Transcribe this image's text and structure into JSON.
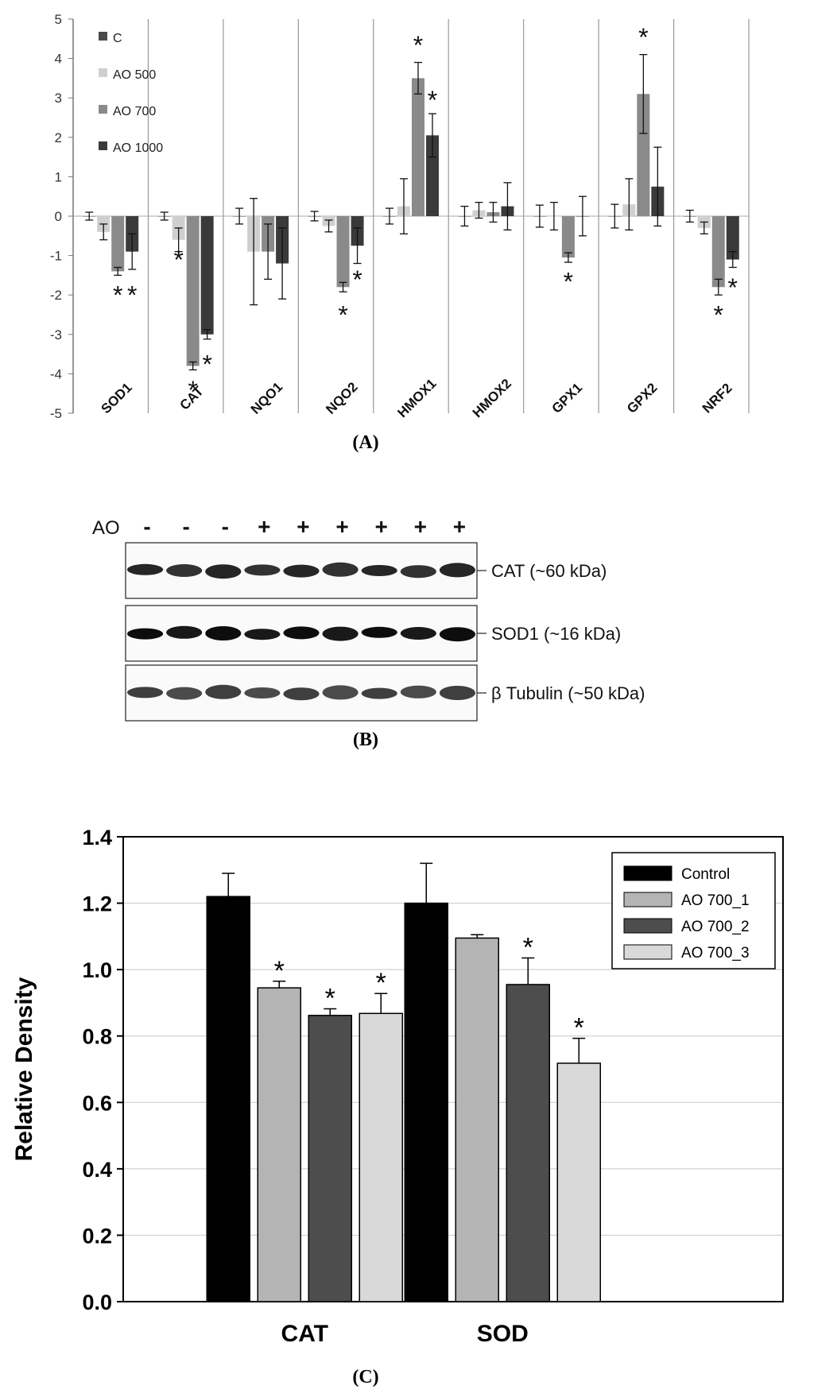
{
  "panels": {
    "a_label": "(A)",
    "b_label": "(B)",
    "c_label": "(C)"
  },
  "chart_data": [
    {
      "type": "bar",
      "panel": "A",
      "title": "",
      "xlabel": "",
      "ylabel": "",
      "ylim": [
        -5,
        5
      ],
      "yticks": [
        "5",
        "4",
        "3",
        "2",
        "1",
        "0",
        "-1",
        "-2",
        "-3",
        "-4",
        "-5"
      ],
      "categories": [
        "SOD1",
        "CAT",
        "NQO1",
        "NQO2",
        "HMOX1",
        "HMOX2",
        "GPX1",
        "GPX2",
        "NRF2"
      ],
      "series": [
        {
          "name": "C",
          "color": "#4a4a4a",
          "values": [
            0,
            0,
            0,
            0,
            0,
            0,
            0,
            0,
            0
          ],
          "errors": [
            0.1,
            0.1,
            0.2,
            0.12,
            0.2,
            0.25,
            0.28,
            0.3,
            0.15
          ]
        },
        {
          "name": "AO 500",
          "color": "#cfcfcf",
          "values": [
            -0.4,
            -0.6,
            -0.9,
            -0.25,
            0.25,
            0.15,
            0,
            0.3,
            -0.3
          ],
          "errors": [
            0.2,
            0.3,
            1.35,
            0.15,
            0.7,
            0.2,
            0.35,
            0.65,
            0.15
          ]
        },
        {
          "name": "AO 700",
          "color": "#8a8a8a",
          "values": [
            -1.4,
            -3.8,
            -0.9,
            -1.8,
            3.5,
            0.1,
            -1.05,
            3.1,
            -1.8
          ],
          "errors": [
            0.1,
            0.1,
            0.7,
            0.12,
            0.4,
            0.25,
            0.12,
            1.0,
            0.2
          ]
        },
        {
          "name": "AO 1000",
          "color": "#3a3a3a",
          "values": [
            -0.9,
            -3.0,
            -1.2,
            -0.75,
            2.05,
            0.25,
            0,
            0.75,
            -1.1
          ],
          "errors": [
            0.45,
            0.12,
            0.9,
            0.45,
            0.55,
            0.6,
            0.5,
            1.0,
            0.2
          ]
        }
      ],
      "annotations": [
        {
          "text": "*",
          "category": "SOD1",
          "series": "AO 700",
          "value": -1.95
        },
        {
          "text": "*",
          "category": "SOD1",
          "series": "AO 1000",
          "value": -1.95
        },
        {
          "text": "*",
          "category": "CAT",
          "series": "AO 500",
          "value": -1.05
        },
        {
          "text": "*",
          "category": "CAT",
          "series": "AO 700",
          "value": -4.35
        },
        {
          "text": "*",
          "category": "CAT",
          "series": "AO 1000",
          "value": -3.7
        },
        {
          "text": "*",
          "category": "NQO2",
          "series": "AO 700",
          "value": -2.45
        },
        {
          "text": "*",
          "category": "NQO2",
          "series": "AO 1000",
          "value": -1.55
        },
        {
          "text": "*",
          "category": "HMOX1",
          "series": "AO 700",
          "value": 4.4
        },
        {
          "text": "*",
          "category": "HMOX1",
          "series": "AO 1000",
          "value": 3.0
        },
        {
          "text": "*",
          "category": "GPX1",
          "series": "AO 700",
          "value": -1.6
        },
        {
          "text": "*",
          "category": "GPX2",
          "series": "AO 700",
          "value": 4.6
        },
        {
          "text": "*",
          "category": "NRF2",
          "series": "AO 700",
          "value": -2.45
        },
        {
          "text": "*",
          "category": "NRF2",
          "series": "AO 1000",
          "value": -1.75
        }
      ]
    },
    {
      "type": "bar",
      "panel": "C",
      "title": "",
      "xlabel": "",
      "ylabel": "Relative Density",
      "ylim": [
        0,
        1.4
      ],
      "yticks": [
        "0.0",
        "0.2",
        "0.4",
        "0.6",
        "0.8",
        "1.0",
        "1.2",
        "1.4"
      ],
      "categories": [
        "CAT",
        "SOD"
      ],
      "legend_position": "top-right",
      "grid": true,
      "series": [
        {
          "name": "Control",
          "color": "#000000",
          "values": [
            1.22,
            1.2
          ],
          "errors": [
            0.07,
            0.12
          ]
        },
        {
          "name": "AO 700_1",
          "color": "#b4b4b4",
          "values": [
            0.945,
            1.095
          ],
          "errors": [
            0.02,
            0.01
          ]
        },
        {
          "name": "AO 700_2",
          "color": "#4d4d4d",
          "values": [
            0.862,
            0.955
          ],
          "errors": [
            0.02,
            0.08
          ]
        },
        {
          "name": "AO 700_3",
          "color": "#d9d9d9",
          "values": [
            0.868,
            0.718
          ],
          "errors": [
            0.06,
            0.075
          ]
        }
      ],
      "significance": [
        [
          false,
          true,
          true,
          true
        ],
        [
          false,
          false,
          true,
          true
        ]
      ],
      "star": "*"
    }
  ],
  "blot": {
    "treatment_label": "AO",
    "lanes": [
      "-",
      "-",
      "-",
      "+",
      "+",
      "+",
      "+",
      "+",
      "+"
    ],
    "bands": [
      {
        "label": "CAT (~60 kDa)",
        "intensity": 0.85
      },
      {
        "label": "SOD1 (~16 kDa)",
        "intensity": 0.95
      },
      {
        "label": "β Tubulin (~50 kDa)",
        "intensity": 0.75
      }
    ]
  }
}
